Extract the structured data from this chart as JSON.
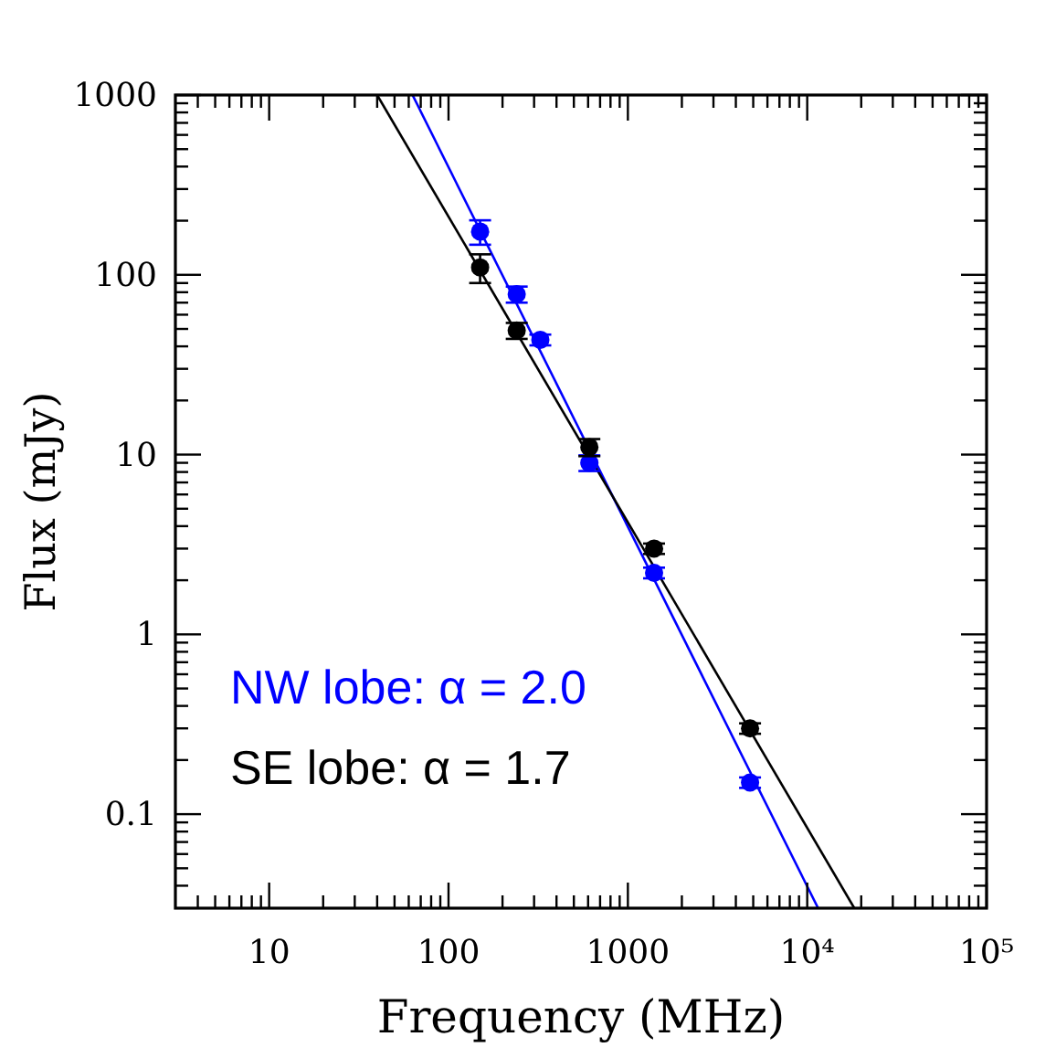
{
  "chart_data": {
    "type": "scatter",
    "xlabel": "Frequency (MHz)",
    "ylabel": "Flux (mJy)",
    "log": "xy",
    "grid": false,
    "legend": "bottom left",
    "marker": "circle",
    "xlim": [
      3,
      100000
    ],
    "ylim": [
      0.03,
      1000
    ],
    "xticks": [
      {
        "value": 4,
        "label": null
      },
      {
        "value": 5,
        "label": null
      },
      {
        "value": 6,
        "label": null
      },
      {
        "value": 7,
        "label": null
      },
      {
        "value": 8,
        "label": null
      },
      {
        "value": 9,
        "label": null
      },
      10,
      {
        "value": 20,
        "label": null
      },
      {
        "value": 30,
        "label": null
      },
      {
        "value": 40,
        "label": null
      },
      {
        "value": 50,
        "label": null
      },
      {
        "value": 60,
        "label": null
      },
      {
        "value": 70,
        "label": null
      },
      {
        "value": 80,
        "label": null
      },
      {
        "value": 90,
        "label": null
      },
      100,
      {
        "value": 200,
        "label": null
      },
      {
        "value": 300,
        "label": null
      },
      {
        "value": 400,
        "label": null
      },
      {
        "value": 500,
        "label": null
      },
      {
        "value": 600,
        "label": null
      },
      {
        "value": 700,
        "label": null
      },
      {
        "value": 800,
        "label": null
      },
      {
        "value": 900,
        "label": null
      },
      1000,
      {
        "value": 2000,
        "label": null
      },
      {
        "value": 3000,
        "label": null
      },
      {
        "value": 4000,
        "label": null
      },
      {
        "value": 5000,
        "label": null
      },
      {
        "value": 6000,
        "label": null
      },
      {
        "value": 7000,
        "label": null
      },
      {
        "value": 8000,
        "label": null
      },
      {
        "value": 9000,
        "label": null
      },
      {
        "value": 10000,
        "label": "10⁴"
      },
      {
        "value": 20000,
        "label": null
      },
      {
        "value": 30000,
        "label": null
      },
      {
        "value": 40000,
        "label": null
      },
      {
        "value": 50000,
        "label": null
      },
      {
        "value": 60000,
        "label": null
      },
      {
        "value": 70000,
        "label": null
      },
      {
        "value": 80000,
        "label": null
      },
      {
        "value": 90000,
        "label": null
      },
      {
        "value": 100000,
        "label": "10⁵"
      }
    ],
    "yticks": [
      {
        "value": 0.04,
        "label": null
      },
      {
        "value": 0.05,
        "label": null
      },
      {
        "value": 0.06,
        "label": null
      },
      {
        "value": 0.07,
        "label": null
      },
      {
        "value": 0.08,
        "label": null
      },
      {
        "value": 0.09,
        "label": null
      },
      0.1,
      {
        "value": 0.2,
        "label": null
      },
      {
        "value": 0.3,
        "label": null
      },
      {
        "value": 0.4,
        "label": null
      },
      {
        "value": 0.5,
        "label": null
      },
      {
        "value": 0.6,
        "label": null
      },
      {
        "value": 0.7,
        "label": null
      },
      {
        "value": 0.8,
        "label": null
      },
      {
        "value": 0.9,
        "label": null
      },
      1,
      {
        "value": 2,
        "label": null
      },
      {
        "value": 3,
        "label": null
      },
      {
        "value": 4,
        "label": null
      },
      {
        "value": 5,
        "label": null
      },
      {
        "value": 6,
        "label": null
      },
      {
        "value": 7,
        "label": null
      },
      {
        "value": 8,
        "label": null
      },
      {
        "value": 9,
        "label": null
      },
      10,
      {
        "value": 20,
        "label": null
      },
      {
        "value": 30,
        "label": null
      },
      {
        "value": 40,
        "label": null
      },
      {
        "value": 50,
        "label": null
      },
      {
        "value": 60,
        "label": null
      },
      {
        "value": 70,
        "label": null
      },
      {
        "value": 80,
        "label": null
      },
      {
        "value": 90,
        "label": null
      },
      100,
      {
        "value": 200,
        "label": null
      },
      {
        "value": 300,
        "label": null
      },
      {
        "value": 400,
        "label": null
      },
      {
        "value": 500,
        "label": null
      },
      {
        "value": 600,
        "label": null
      },
      {
        "value": 700,
        "label": null
      },
      {
        "value": 800,
        "label": null
      },
      {
        "value": 900,
        "label": null
      },
      1000
    ],
    "series": [
      {
        "type": "line",
        "name": "NW lobe: α = 2.0",
        "color": "#0000ff",
        "x": [
          63,
          11500
        ],
        "values": [
          1000,
          0.03
        ],
        "marker": "none",
        "line_style": "solid"
      },
      {
        "type": "line",
        "name": "SE lobe: α = 1.7",
        "color": "#000000",
        "x": [
          40,
          18300
        ],
        "values": [
          1000,
          0.03
        ],
        "marker": "none",
        "line_style": "solid"
      },
      {
        "color": "#0000ff",
        "x": [
          150,
          240,
          325,
          610,
          1400,
          4800
        ],
        "values": [
          174,
          78,
          43.5,
          9,
          2.2,
          0.15
        ],
        "errors": [
          27,
          8,
          3,
          0.9,
          0.15,
          0.01
        ]
      },
      {
        "color": "#000000",
        "x": [
          150,
          240,
          610,
          1400,
          4800
        ],
        "values": [
          110,
          49,
          11,
          3,
          0.3
        ],
        "errors": [
          20,
          5,
          1.2,
          0.2,
          0.02
        ]
      }
    ]
  }
}
